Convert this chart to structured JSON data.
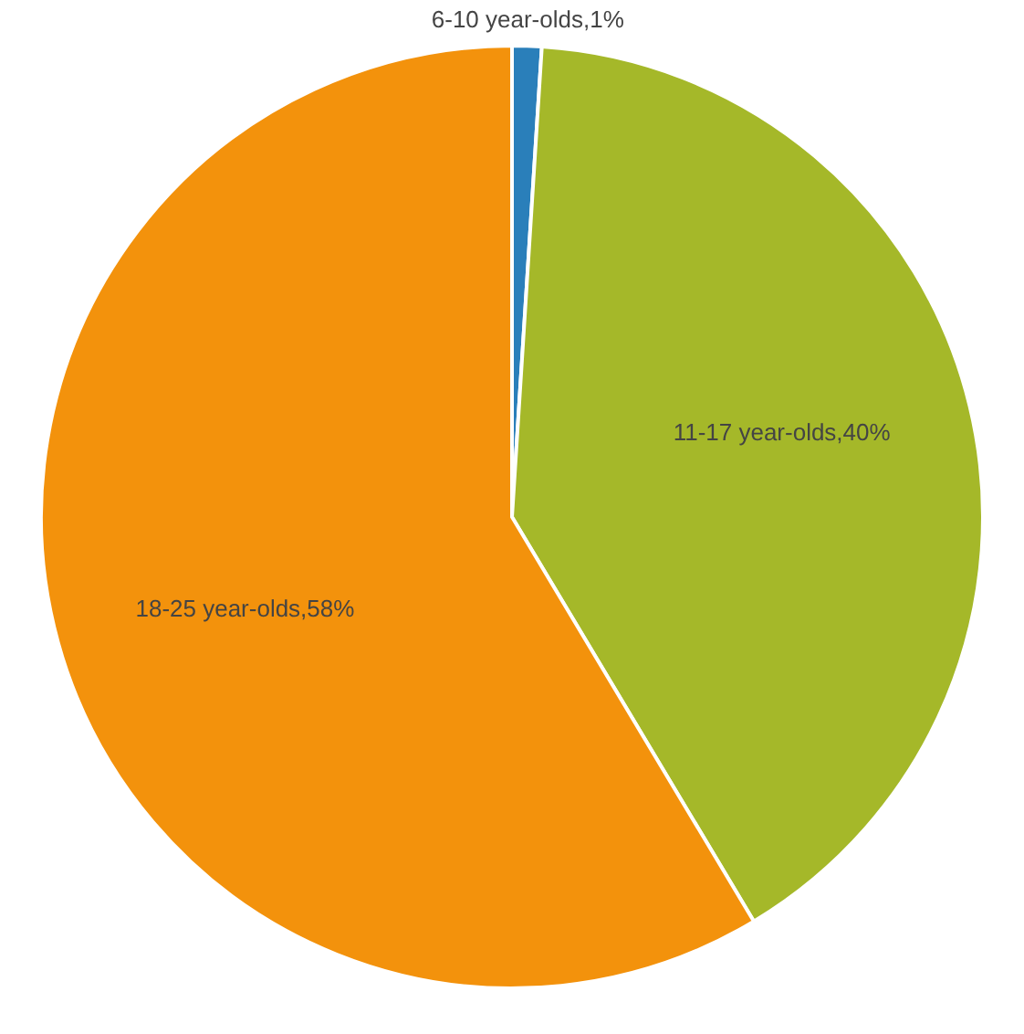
{
  "chart_data": {
    "type": "pie",
    "categories": [
      "6-10 year-olds",
      "11-17 year-olds",
      "18-25 year-olds"
    ],
    "values": [
      1,
      40,
      58
    ],
    "value_labels": [
      "1%",
      "40%",
      "58%"
    ],
    "colors": [
      "#2a7fba",
      "#a5b829",
      "#f3920c"
    ]
  }
}
